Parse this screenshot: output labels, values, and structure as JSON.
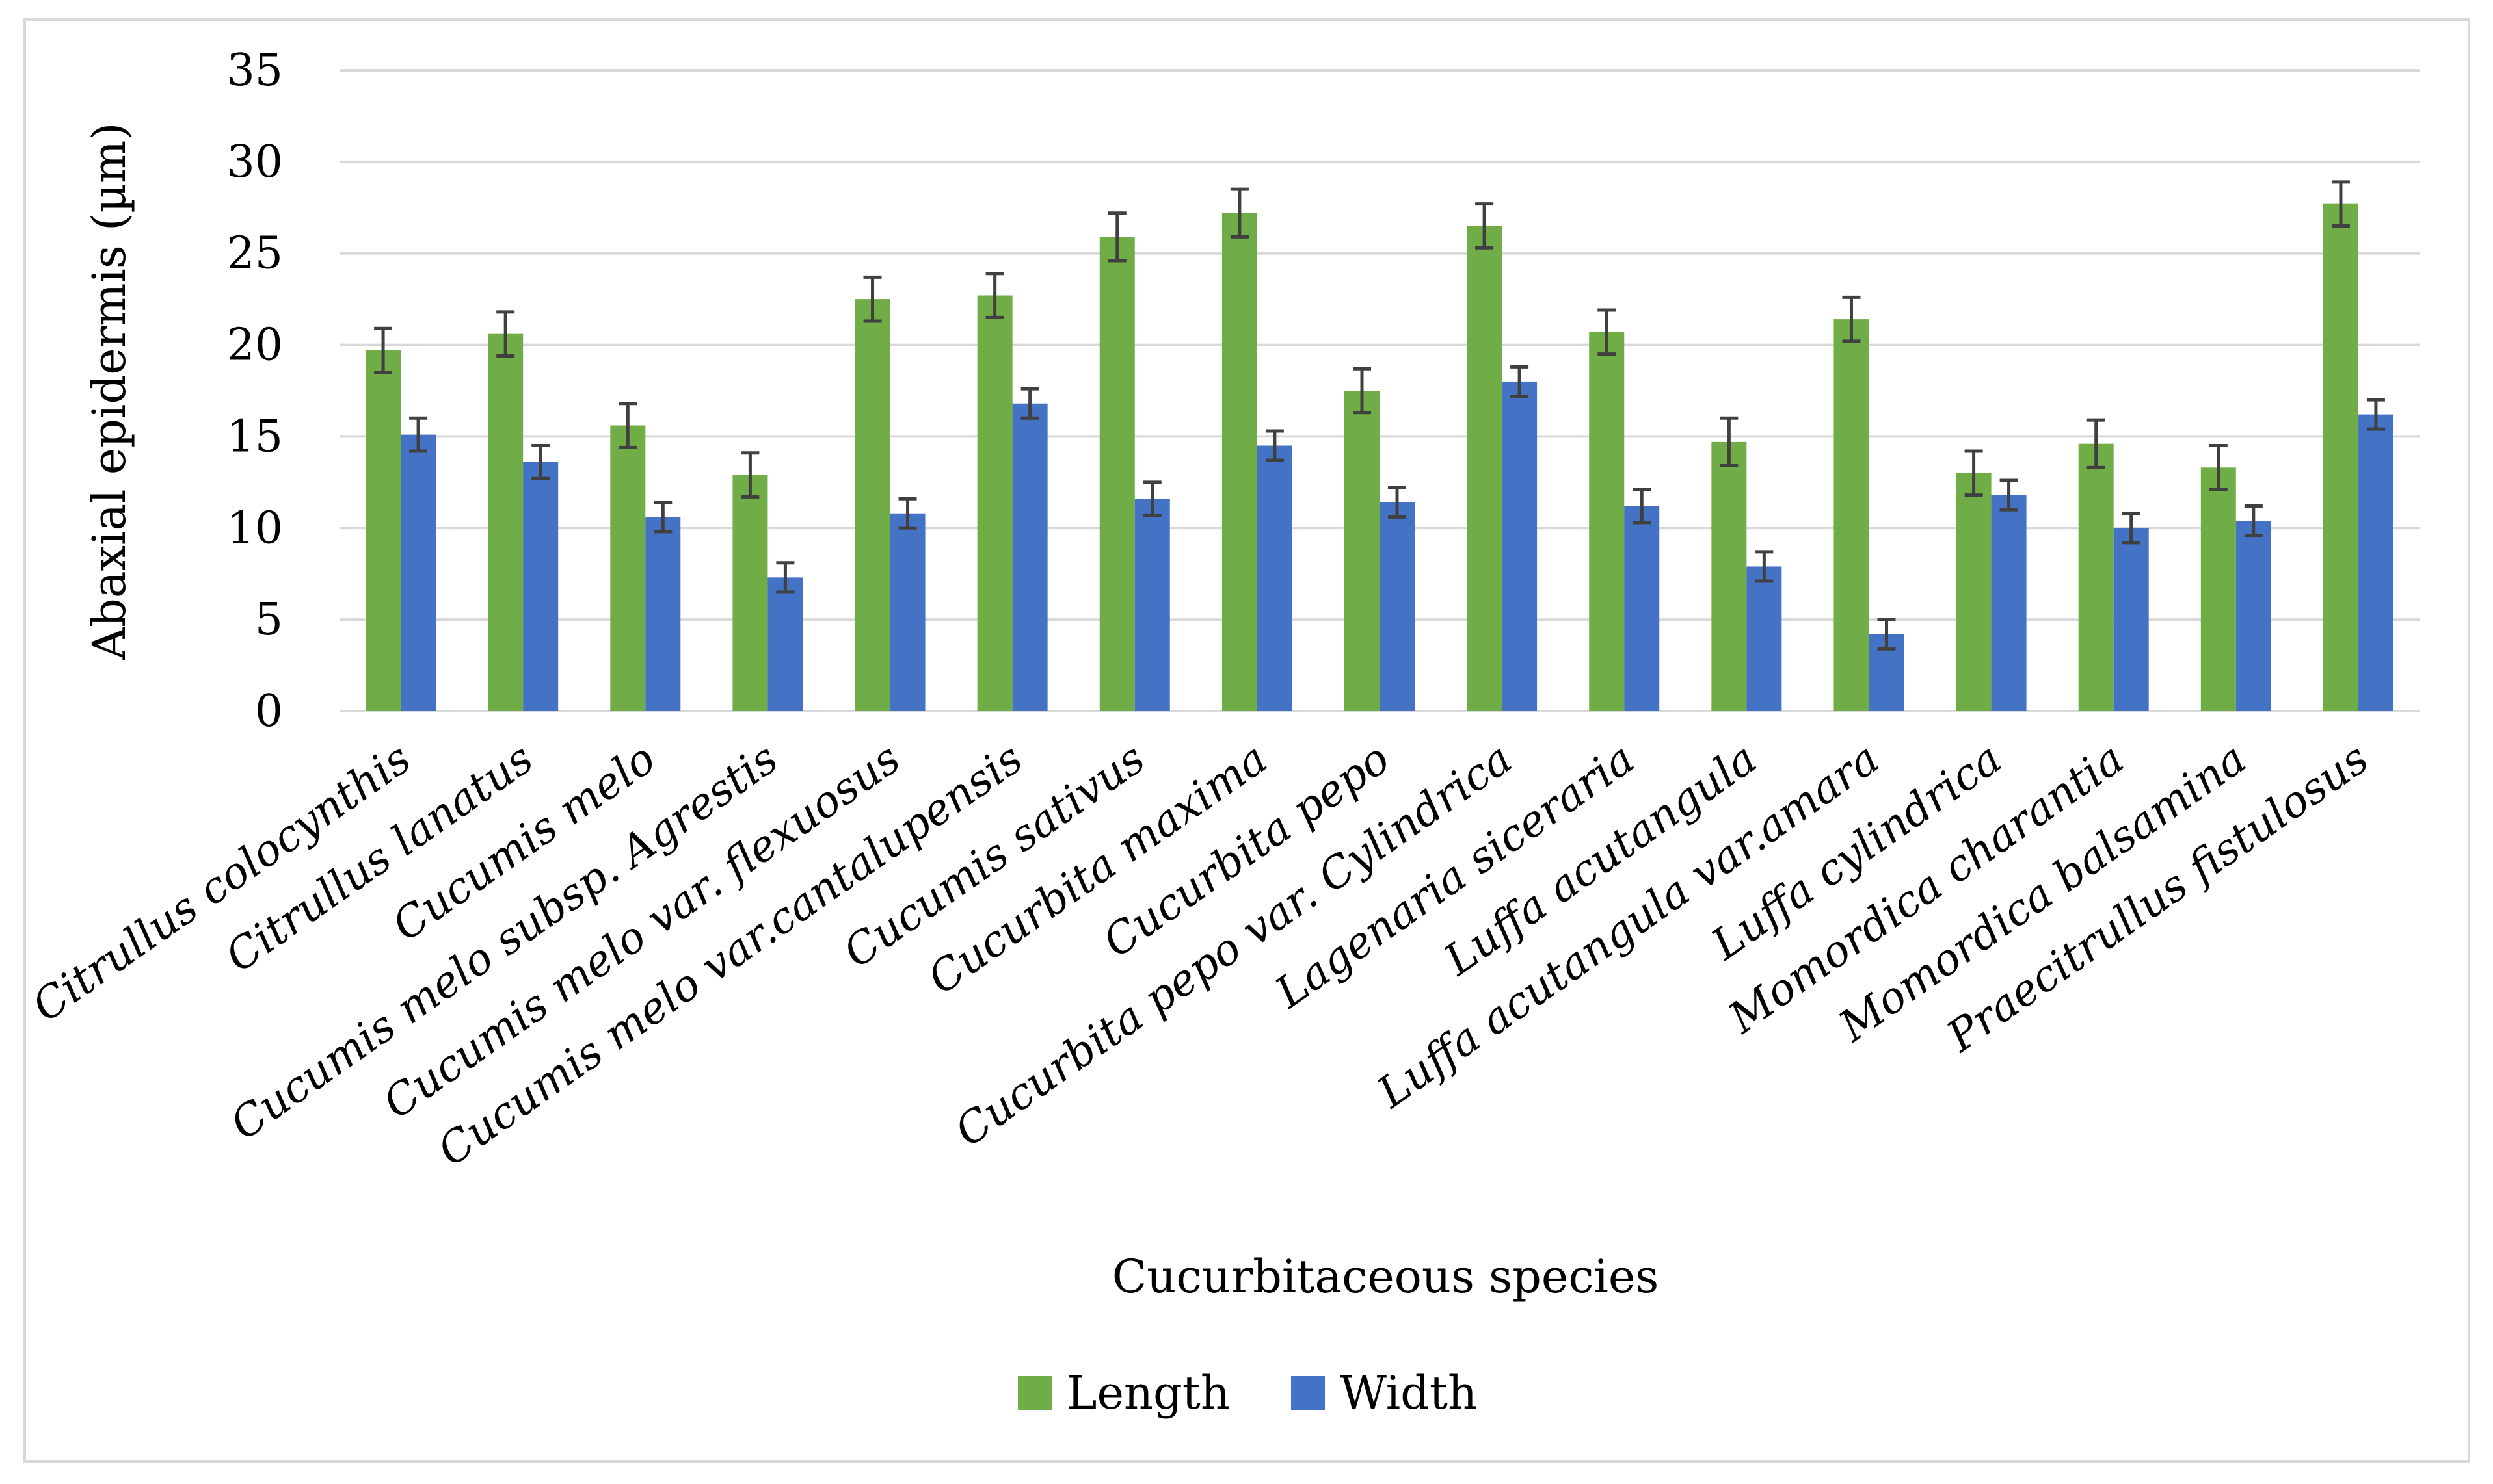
{
  "chart_data": {
    "type": "bar",
    "title": "",
    "xlabel": "Cucurbitaceous species",
    "ylabel": "Abaxial epidermis (µm)",
    "ylim": [
      0,
      35
    ],
    "yticks": [
      0,
      5,
      10,
      15,
      20,
      25,
      30,
      35
    ],
    "grid": true,
    "legend_position": "bottom",
    "categories": [
      "Citrullus colocynthis",
      "Citrullus lanatus",
      "Cucumis melo",
      "Cucumis melo subsp. Agrestis",
      "Cucumis melo var. flexuosus",
      "Cucumis melo var.cantalupensis",
      "Cucumis sativus",
      "Cucurbita maxima",
      "Cucurbita pepo",
      "Cucurbita pepo var. Cylindrica",
      "Lagenaria siceraria",
      "Luffa acutangula",
      "Luffa acutangula var.amara",
      "Luffa cylindrica",
      "Momordica charantia",
      "Momordica balsamina",
      "Praecitrullus fistulosus"
    ],
    "series": [
      {
        "name": "Length",
        "color": "#70ad47",
        "values": [
          19.7,
          20.6,
          15.6,
          12.9,
          22.5,
          22.7,
          25.9,
          27.2,
          17.5,
          26.5,
          20.7,
          14.7,
          21.4,
          13.0,
          14.6,
          13.3,
          27.7
        ],
        "errors": [
          1.2,
          1.2,
          1.2,
          1.2,
          1.2,
          1.2,
          1.3,
          1.3,
          1.2,
          1.2,
          1.2,
          1.3,
          1.2,
          1.2,
          1.3,
          1.2,
          1.2
        ]
      },
      {
        "name": "Width",
        "color": "#4472c4",
        "values": [
          15.1,
          13.6,
          10.6,
          7.3,
          10.8,
          16.8,
          11.6,
          14.5,
          11.4,
          18.0,
          11.2,
          7.9,
          4.2,
          11.8,
          10.0,
          10.4,
          16.2
        ],
        "errors": [
          0.9,
          0.9,
          0.8,
          0.8,
          0.8,
          0.8,
          0.9,
          0.8,
          0.8,
          0.8,
          0.9,
          0.8,
          0.8,
          0.8,
          0.8,
          0.8,
          0.8
        ]
      }
    ]
  }
}
